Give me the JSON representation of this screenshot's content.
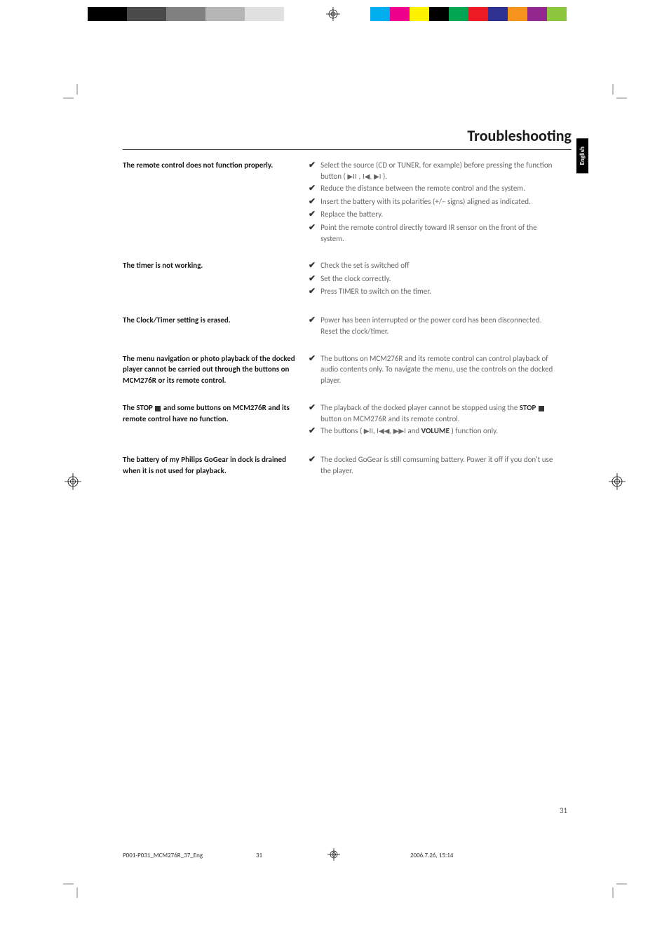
{
  "title": "Troubleshooting",
  "language_tab": "English",
  "color_bar_left": [
    "#000000",
    "#000000",
    "#4a4a4a",
    "#4a4a4a",
    "#808080",
    "#808080",
    "#b5b5b5",
    "#b5b5b5",
    "#e0e0e0",
    "#e0e0e0"
  ],
  "color_bar_right": [
    "#00aeef",
    "#ec008c",
    "#fff200",
    "#000000",
    "#00a651",
    "#ed1c24",
    "#2e3192",
    "#f7941d",
    "#92278f",
    "#8dc63f"
  ],
  "rows": [
    {
      "problem": "The remote control does not function properly.",
      "solutions": [
        {
          "pre": "Select the source (CD or TUNER, for example) before pressing the function button ( ",
          "icons": "▶II , I◀, ▶I",
          "post": " )."
        },
        {
          "text": "Reduce the distance between the remote control and the system."
        },
        {
          "text": "Insert the battery with its polarities (+/– signs) aligned as indicated."
        },
        {
          "text": "Replace the battery."
        },
        {
          "text": "Point the remote control directly toward IR sensor on the front of the system."
        }
      ]
    },
    {
      "problem": "The timer is not working.",
      "solutions": [
        {
          "text": "Check the set is switched off"
        },
        {
          "text": "Set the clock correctly."
        },
        {
          "text": "Press TIMER to switch on the timer."
        }
      ]
    },
    {
      "problem": "The Clock/Timer setting is erased.",
      "solutions": [
        {
          "text": "Power has been interrupted or the power cord has been disconnected. Reset the clock/timer."
        }
      ]
    },
    {
      "problem": "The menu navigation or photo playback of the docked player cannot be carried out through the buttons on MCM276R or its remote control.",
      "solutions": [
        {
          "text": "The buttons on MCM276R and its remote control can control playback of audio contents only. To navigate the menu, use the controls on the docked player."
        }
      ]
    },
    {
      "problem_html": "The STOP <span class=\"stop-square\"></span> and some buttons on MCM276R and its remote control have no function.",
      "solutions": [
        {
          "html": "The playback of the docked player cannot be stopped using the <span class=\"bold-inline\">STOP</span> <span class=\"stop-square\"></span> button on MCM276R and its remote control."
        },
        {
          "html": "The buttons ( <span class=\"btn-icon\">▶II</span>, <span class=\"btn-icon\">I◀◀</span>, <span class=\"btn-icon\">▶▶I</span> and <span class=\"bold-inline\">VOLUME</span> ) function only."
        }
      ]
    },
    {
      "problem": "The battery of my Philips GoGear in dock is drained when it is not used for playback.",
      "solutions": [
        {
          "text": "The docked GoGear is still comsuming battery. Power it off if you don't use the player."
        }
      ]
    }
  ],
  "page_number": "31",
  "footer": {
    "filename": "P001-P031_MCM276R_37_Eng",
    "page": "31",
    "date": "2006.7.26, 15:14"
  }
}
